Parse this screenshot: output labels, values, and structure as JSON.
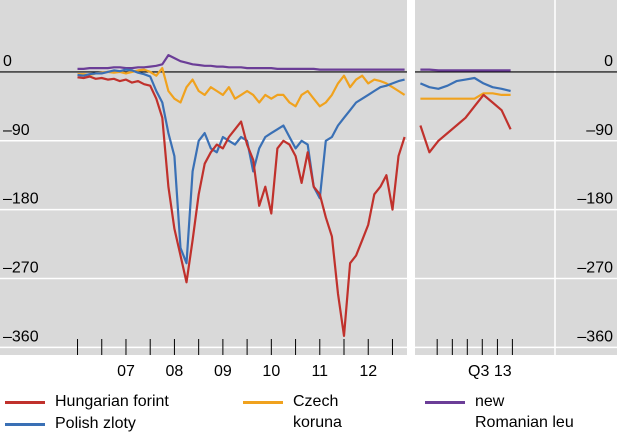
{
  "chart_data": [
    {
      "type": "line",
      "x": [
        2006.5,
        2006.625,
        2006.75,
        2006.875,
        2007,
        2007.125,
        2007.25,
        2007.375,
        2007.5,
        2007.625,
        2007.75,
        2007.875,
        2008,
        2008.125,
        2008.25,
        2008.375,
        2008.5,
        2008.625,
        2008.75,
        2008.875,
        2009,
        2009.125,
        2009.25,
        2009.375,
        2009.5,
        2009.625,
        2009.75,
        2009.875,
        2010,
        2010.125,
        2010.25,
        2010.375,
        2010.5,
        2010.625,
        2010.75,
        2010.875,
        2011,
        2011.125,
        2011.25,
        2011.375,
        2011.5,
        2011.625,
        2011.75,
        2011.875,
        2012,
        2012.125,
        2012.25,
        2012.375,
        2012.5,
        2012.625,
        2012.75,
        2012.875,
        2013,
        2013.125,
        2013.25
      ],
      "xlim": [
        2004.9,
        2013.3
      ],
      "xticks": [
        2006.5,
        2007,
        2007.5,
        2008,
        2008.5,
        2009,
        2009.5,
        2010,
        2010.5,
        2011,
        2011.5,
        2012,
        2012.5,
        2013
      ],
      "xtick_labels": [
        {
          "value": 2007.5,
          "label": "07"
        },
        {
          "value": 2008.5,
          "label": "08"
        },
        {
          "value": 2009.5,
          "label": "09"
        },
        {
          "value": 2010.5,
          "label": "10"
        },
        {
          "value": 2011.5,
          "label": "11"
        },
        {
          "value": 2012.5,
          "label": "12"
        }
      ],
      "ylim": [
        -370,
        94
      ],
      "yticks": [
        0,
        {
          "value": -90,
          "label": "–90"
        },
        {
          "value": -180,
          "label": "–180"
        },
        {
          "value": -270,
          "label": "–270"
        },
        {
          "value": -360,
          "label": "–360"
        }
      ],
      "grid": true,
      "series": [
        {
          "name": "Hungarian forint",
          "color": "#c0312c",
          "values": [
            -7,
            -8,
            -6,
            -9,
            -8,
            -10,
            -9,
            -12,
            -10,
            -14,
            -12,
            -16,
            -18,
            -35,
            -60,
            -150,
            -205,
            -240,
            -275,
            -220,
            -160,
            -120,
            -105,
            -95,
            -100,
            -85,
            -75,
            -65,
            -95,
            -115,
            -175,
            -150,
            -185,
            -100,
            -90,
            -95,
            -110,
            -145,
            -105,
            -150,
            -160,
            -190,
            -215,
            -290,
            -345,
            -250,
            -240,
            -220,
            -200,
            -160,
            -150,
            -135,
            -180,
            -110,
            -85
          ]
        },
        {
          "name": "Polish zloty",
          "color": "#3a70b5",
          "values": [
            -4,
            -5,
            -3,
            -2,
            -2,
            0,
            2,
            1,
            3,
            2,
            -1,
            -3,
            -6,
            -25,
            -40,
            -80,
            -110,
            -230,
            -250,
            -130,
            -90,
            -80,
            -100,
            -105,
            -85,
            -90,
            -95,
            -85,
            -90,
            -130,
            -100,
            -85,
            -80,
            -75,
            -70,
            -85,
            -100,
            -90,
            -95,
            -150,
            -165,
            -90,
            -85,
            -70,
            -60,
            -50,
            -40,
            -35,
            -30,
            -25,
            -20,
            -18,
            -15,
            -12,
            -10
          ]
        },
        {
          "name": "Czech koruna",
          "color": "#f0a21e",
          "values": [
            -3,
            -3,
            -4,
            -2,
            -1,
            0,
            -1,
            0,
            -2,
            0,
            2,
            3,
            0,
            -5,
            5,
            -25,
            -35,
            -40,
            -20,
            -10,
            -25,
            -30,
            -20,
            -25,
            -30,
            -20,
            -35,
            -30,
            -25,
            -30,
            -40,
            -30,
            -35,
            -30,
            -30,
            -40,
            -45,
            -30,
            -25,
            -35,
            -45,
            -40,
            -30,
            -15,
            -5,
            -20,
            -10,
            -5,
            -15,
            -10,
            -12,
            -15,
            -20,
            -25,
            -30
          ]
        },
        {
          "name": "new Romanian leu",
          "color": "#6b3d97",
          "values": [
            4,
            4,
            5,
            5,
            5,
            5,
            6,
            6,
            5,
            5,
            6,
            6,
            7,
            8,
            10,
            22,
            18,
            14,
            12,
            10,
            9,
            8,
            8,
            7,
            7,
            6,
            6,
            6,
            5,
            5,
            5,
            5,
            5,
            4,
            4,
            4,
            4,
            4,
            4,
            4,
            3,
            3,
            3,
            3,
            3,
            3,
            3,
            3,
            3,
            3,
            3,
            3,
            3,
            3,
            3
          ]
        }
      ]
    },
    {
      "type": "line",
      "x": [
        2013.24,
        2013.29,
        2013.34,
        2013.39,
        2013.44,
        2013.49,
        2013.54,
        2013.59,
        2013.64,
        2013.69,
        2013.74
      ],
      "xlim": [
        2013.21,
        2014.33
      ],
      "xticks": [
        2013.333,
        2013.417,
        2013.5,
        2013.583,
        2013.667,
        2013.75
      ],
      "xtick_labels": [
        {
          "value": 2013.625,
          "label": "Q3 13"
        }
      ],
      "ylim": [
        -370,
        94
      ],
      "yticks": [
        0,
        {
          "value": -90,
          "label": "–90"
        },
        {
          "value": -180,
          "label": "–180"
        },
        {
          "value": -270,
          "label": "–270"
        },
        {
          "value": -360,
          "label": "–360"
        }
      ],
      "grid": true,
      "series": [
        {
          "name": "Hungarian forint",
          "color": "#c0312c",
          "values": [
            -70,
            -105,
            -90,
            -80,
            -70,
            -60,
            -45,
            -30,
            -40,
            -50,
            -75
          ]
        },
        {
          "name": "Polish zloty",
          "color": "#3a70b5",
          "values": [
            -15,
            -20,
            -22,
            -18,
            -12,
            -10,
            -8,
            -15,
            -20,
            -22,
            -25
          ]
        },
        {
          "name": "Czech koruna",
          "color": "#f0a21e",
          "values": [
            -35,
            -35,
            -35,
            -35,
            -35,
            -35,
            -35,
            -28,
            -28,
            -30,
            -30
          ]
        },
        {
          "name": "new Romanian leu",
          "color": "#6b3d97",
          "values": [
            3,
            3,
            2,
            2,
            2,
            2,
            2,
            2,
            2,
            2,
            2
          ]
        }
      ]
    }
  ]
}
